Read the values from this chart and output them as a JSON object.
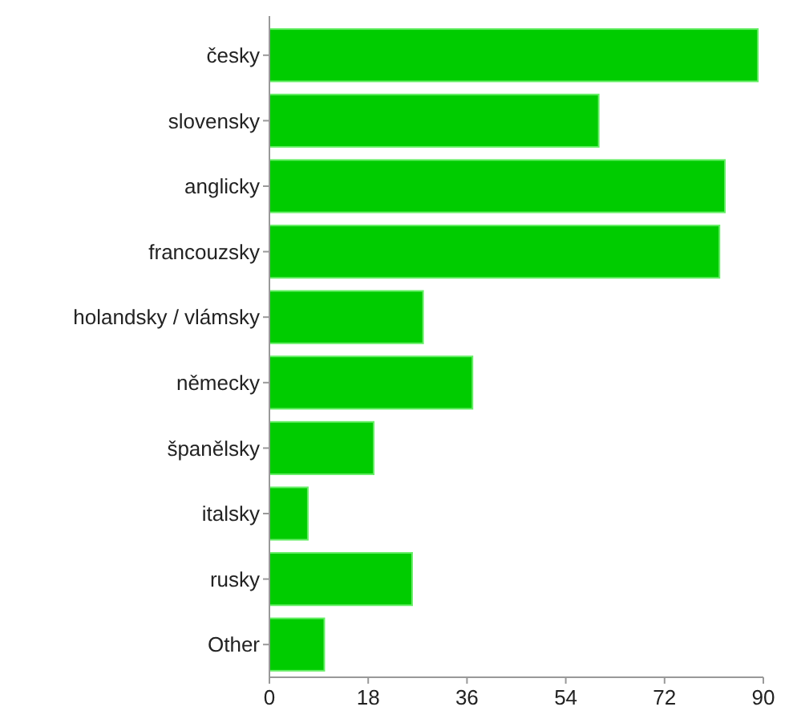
{
  "chart_data": {
    "type": "bar",
    "orientation": "horizontal",
    "categories": [
      "česky",
      "slovensky",
      "anglicky",
      "francouzsky",
      "holandsky / vlámsky",
      "německy",
      "španělsky",
      "italsky",
      "rusky",
      "Other"
    ],
    "values": [
      89,
      60,
      83,
      82,
      28,
      37,
      19,
      7,
      26,
      10
    ],
    "color": "#00cc00",
    "xlim": [
      0,
      90
    ],
    "xticks": [
      0,
      18,
      36,
      54,
      72,
      90
    ],
    "grid": false
  }
}
